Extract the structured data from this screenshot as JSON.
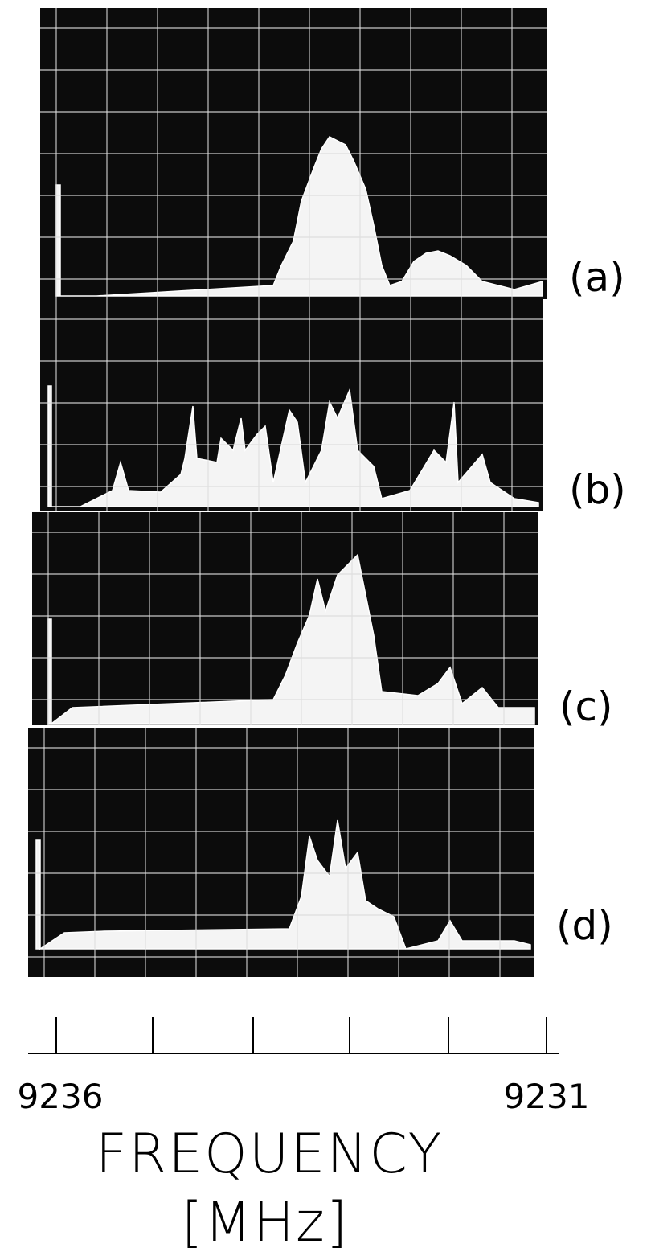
{
  "panels": [
    {
      "label": "(a)"
    },
    {
      "label": "(b)"
    },
    {
      "label": "(c)"
    },
    {
      "label": "(d)"
    }
  ],
  "axis": {
    "start_label": "9236",
    "end_label": "9231",
    "title": "FREQUENCY",
    "unit": "[MHz]"
  }
}
